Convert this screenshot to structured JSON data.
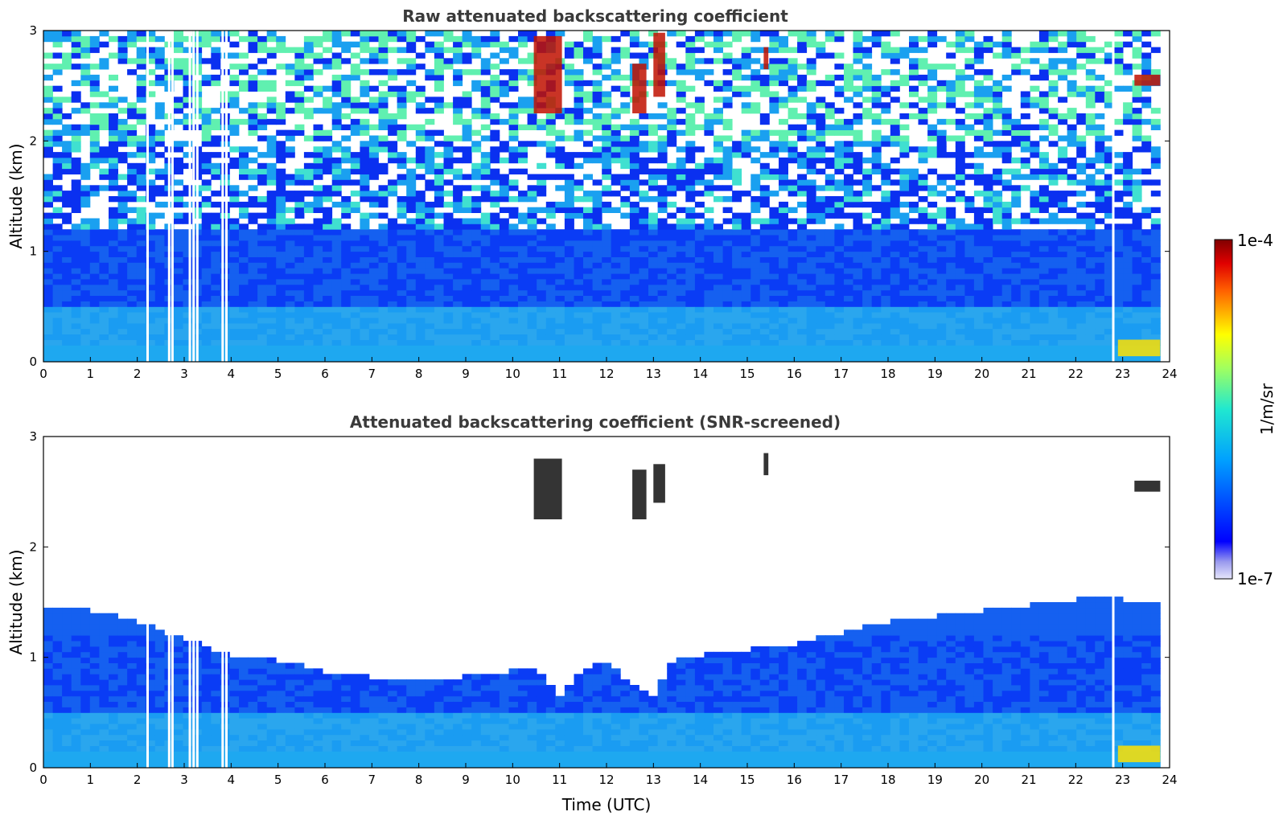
{
  "colors": {
    "background": "#ffffff",
    "axis": "#000000",
    "title_text": "#3a3a3a"
  },
  "chart_data": [
    {
      "type": "heatmap",
      "title": "Raw attenuated backscattering coefficient",
      "xlabel": "",
      "ylabel": "Altitude (km)",
      "xlim": [
        0,
        24
      ],
      "ylim": [
        0,
        3
      ],
      "x_ticks": [
        "0",
        "1",
        "2",
        "3",
        "4",
        "5",
        "6",
        "7",
        "8",
        "9",
        "10",
        "11",
        "12",
        "13",
        "14",
        "15",
        "16",
        "17",
        "18",
        "19",
        "20",
        "21",
        "22",
        "23",
        "24"
      ],
      "y_ticks": [
        "0",
        "1",
        "2",
        "3"
      ],
      "data_end_time": 23.8,
      "missing_data_times": [
        2.22,
        2.68,
        2.75,
        3.12,
        3.2,
        3.28,
        3.82,
        3.9,
        22.8
      ],
      "cloud_patches": [
        {
          "t_start": 10.45,
          "t_end": 11.05,
          "alt_bottom": 2.25,
          "alt_top": 2.95
        },
        {
          "t_start": 12.55,
          "t_end": 12.85,
          "alt_bottom": 2.25,
          "alt_top": 2.7
        },
        {
          "t_start": 13.0,
          "t_end": 13.25,
          "alt_bottom": 2.4,
          "alt_top": 2.98
        },
        {
          "t_start": 15.35,
          "t_end": 15.45,
          "alt_bottom": 2.65,
          "alt_top": 2.85
        },
        {
          "t_start": 23.25,
          "t_end": 23.8,
          "alt_bottom": 2.5,
          "alt_top": 2.6
        },
        {
          "t_start": 22.9,
          "t_end": 23.8,
          "alt_bottom": 0.05,
          "alt_top": 0.2
        }
      ]
    },
    {
      "type": "heatmap",
      "title": "Attenuated backscattering coefficient (SNR-screened)",
      "xlabel": "Time (UTC)",
      "ylabel": "Altitude (km)",
      "xlim": [
        0,
        24
      ],
      "ylim": [
        0,
        3
      ],
      "x_ticks": [
        "0",
        "1",
        "2",
        "3",
        "4",
        "5",
        "6",
        "7",
        "8",
        "9",
        "10",
        "11",
        "12",
        "13",
        "14",
        "15",
        "16",
        "17",
        "18",
        "19",
        "20",
        "21",
        "22",
        "23",
        "24"
      ],
      "y_ticks": [
        "0",
        "1",
        "2",
        "3"
      ],
      "data_end_time": 23.8,
      "missing_data_times": [
        2.22,
        2.68,
        2.75,
        3.12,
        3.2,
        3.28,
        3.82,
        3.9,
        22.8
      ],
      "boundary_layer_top": {
        "times": [
          0,
          1,
          2,
          3,
          4,
          5,
          6,
          7,
          8,
          9,
          10,
          10.5,
          11,
          11.5,
          12,
          12.6,
          13,
          13.4,
          14,
          15,
          16,
          17,
          18,
          19,
          20,
          21,
          22,
          23,
          23.8
        ],
        "altitude_km": [
          1.45,
          1.4,
          1.3,
          1.15,
          1.0,
          0.95,
          0.85,
          0.8,
          0.78,
          0.8,
          0.85,
          0.9,
          0.6,
          0.85,
          0.95,
          0.7,
          0.6,
          0.95,
          1.0,
          1.05,
          1.1,
          1.2,
          1.3,
          1.35,
          1.4,
          1.45,
          1.5,
          1.5,
          1.45
        ]
      },
      "cloud_patches": [
        {
          "t_start": 10.45,
          "t_end": 11.05,
          "alt_bottom": 2.25,
          "alt_top": 2.8
        },
        {
          "t_start": 12.55,
          "t_end": 12.85,
          "alt_bottom": 2.25,
          "alt_top": 2.7
        },
        {
          "t_start": 13.0,
          "t_end": 13.25,
          "alt_bottom": 2.4,
          "alt_top": 2.75
        },
        {
          "t_start": 15.35,
          "t_end": 15.45,
          "alt_bottom": 2.65,
          "alt_top": 2.85
        },
        {
          "t_start": 23.25,
          "t_end": 23.8,
          "alt_bottom": 2.5,
          "alt_top": 2.6
        },
        {
          "t_start": 22.9,
          "t_end": 23.8,
          "alt_bottom": 0.05,
          "alt_top": 0.2
        }
      ]
    }
  ],
  "colorbar": {
    "label": "1/m/sr",
    "max_label": "1e-4",
    "min_label": "1e-7",
    "scale": "log",
    "colormap": "jet"
  }
}
